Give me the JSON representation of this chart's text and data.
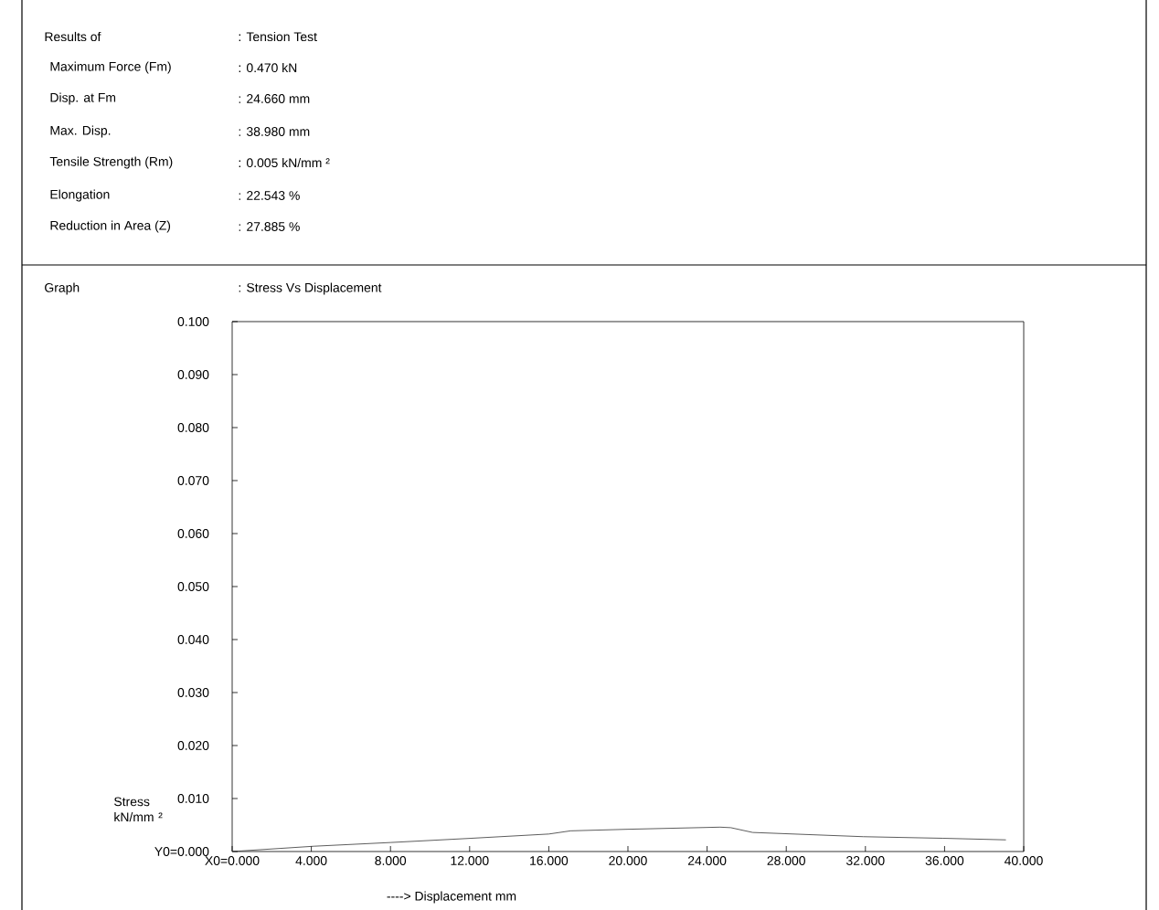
{
  "chart_data": {
    "type": "line",
    "color": "#333333",
    "x": [
      0,
      4.14,
      8.0,
      12.1,
      16.0,
      17.1,
      20.0,
      24.66,
      25.2,
      26.3,
      31.9,
      35.9,
      39.1
    ],
    "values": [
      0,
      0.001,
      0.0017,
      0.0025,
      0.0033,
      0.0039,
      0.0042,
      0.0046,
      0.0045,
      0.0036,
      0.0028,
      0.0025,
      0.0022
    ],
    "xlim": [
      0,
      40
    ],
    "ylim": [
      0,
      0.1
    ],
    "xticks": [
      {
        "value": 0,
        "label": "X0=0.000"
      },
      {
        "value": 4,
        "label": "4.000"
      },
      {
        "value": 8,
        "label": "8.000"
      },
      {
        "value": 12,
        "label": "12.000"
      },
      {
        "value": 16,
        "label": "16.000"
      },
      {
        "value": 20,
        "label": "20.000"
      },
      {
        "value": 24,
        "label": "24.000"
      },
      {
        "value": 28,
        "label": "28.000"
      },
      {
        "value": 32,
        "label": "32.000"
      },
      {
        "value": 36,
        "label": "36.000"
      },
      {
        "value": 40,
        "label": "40.000"
      }
    ],
    "yticks": [
      {
        "value": 0,
        "label": "Y0=0.000"
      },
      {
        "value": 0.01,
        "label": "0.010"
      },
      {
        "value": 0.02,
        "label": "0.020"
      },
      {
        "value": 0.03,
        "label": "0.030"
      },
      {
        "value": 0.04,
        "label": "0.040"
      },
      {
        "value": 0.05,
        "label": "0.050"
      },
      {
        "value": 0.06,
        "label": "0.060"
      },
      {
        "value": 0.07,
        "label": "0.070"
      },
      {
        "value": 0.08,
        "label": "0.080"
      },
      {
        "value": 0.09,
        "label": "0.090"
      },
      {
        "value": 0.1,
        "label": "0.100"
      }
    ],
    "xlabel": "----> Displacement  mm",
    "ylabel": "Stress kN/mm ²",
    "marker": "none",
    "line_style": "solid",
    "annotations": [
      "Results of",
      ": Tension Test",
      "Maximum Force (Fm)",
      ": 0.470  kN",
      "Disp. at Fm",
      ": 24.660  mm",
      "Max. Disp.",
      ": 38.980  mm",
      "Tensile Strength (Rm)",
      ": 0.005  kN/mm ²",
      "Elongation",
      ": 22.543  %",
      "Reduction in Area (Z)",
      ": 27.885  %",
      "Graph",
      ":  Stress Vs Displacement"
    ]
  }
}
